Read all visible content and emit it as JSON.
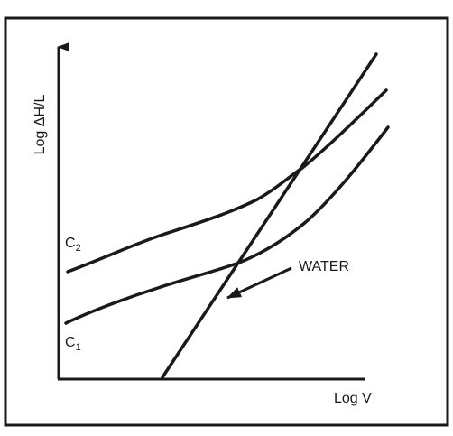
{
  "figure": {
    "y_axis_label": "Log ΔH/L",
    "x_axis_label": "Log V",
    "curve_c2_label": {
      "letter": "C",
      "subscript": "2"
    },
    "curve_c1_label": {
      "letter": "C",
      "subscript": "1"
    },
    "water_label": "WATER",
    "ink_color": "#1a1a1a",
    "frame_color": "#1a1a1a"
  }
}
